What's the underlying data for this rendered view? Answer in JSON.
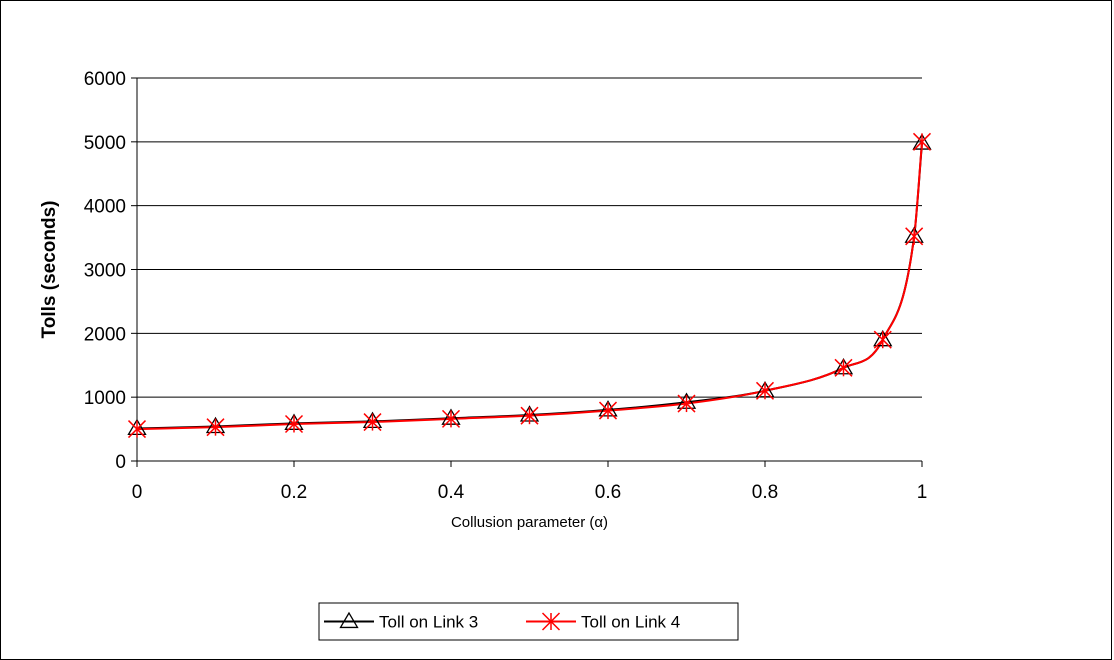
{
  "chart_data": {
    "type": "line",
    "title": "",
    "xlabel": "Collusion parameter (α)",
    "ylabel": "Tolls (seconds)",
    "xlim": [
      0,
      1
    ],
    "ylim": [
      0,
      6000
    ],
    "xticks": [
      "0",
      "0.2",
      "0.4",
      "0.6",
      "0.8",
      "1"
    ],
    "xtick_values": [
      0,
      0.2,
      0.4,
      0.6,
      0.8,
      1
    ],
    "yticks": [
      "0",
      "1000",
      "2000",
      "3000",
      "4000",
      "5000",
      "6000"
    ],
    "ytick_values": [
      0,
      1000,
      2000,
      3000,
      4000,
      5000,
      6000
    ],
    "grid": "horizontal",
    "legend_position": "bottom",
    "series": [
      {
        "name": "Toll on Link 3",
        "color": "#000000",
        "marker": "triangle",
        "x": [
          0,
          0.1,
          0.2,
          0.3,
          0.4,
          0.5,
          0.6,
          0.7,
          0.8,
          0.9,
          0.95,
          0.99,
          1
        ],
        "y": [
          510,
          540,
          590,
          620,
          670,
          720,
          800,
          920,
          1100,
          1460,
          1900,
          3520,
          4980
        ]
      },
      {
        "name": "Toll on Link 4",
        "color": "#ff0000",
        "marker": "asterisk",
        "x": [
          0,
          0.1,
          0.2,
          0.3,
          0.4,
          0.5,
          0.6,
          0.7,
          0.8,
          0.9,
          0.95,
          0.99,
          1
        ],
        "y": [
          500,
          530,
          580,
          610,
          660,
          710,
          790,
          900,
          1100,
          1460,
          1900,
          3520,
          5000
        ]
      }
    ]
  }
}
